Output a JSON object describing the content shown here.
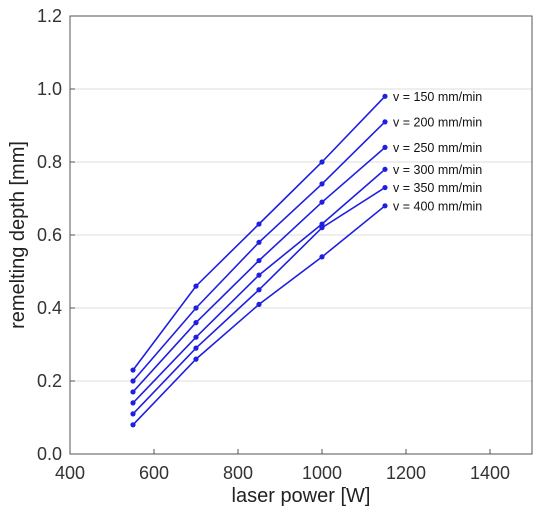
{
  "chart_data": {
    "type": "line",
    "title": "",
    "xlabel": "laser power [W]",
    "ylabel": "remelting depth [mm]",
    "xlim": [
      400,
      1500
    ],
    "ylim": [
      0.0,
      1.2
    ],
    "xticks": [
      400,
      600,
      800,
      1000,
      1200,
      1400
    ],
    "yticks": [
      0.0,
      0.2,
      0.4,
      0.6,
      0.8,
      1.0,
      1.2
    ],
    "xtick_labels": [
      "400",
      "600",
      "800",
      "1000",
      "1200",
      "1400"
    ],
    "ytick_labels": [
      "0.0",
      "0.2",
      "0.4",
      "0.6",
      "0.8",
      "1.0",
      "1.2"
    ],
    "grid": "horizontal",
    "legend": "inline labels at line ends",
    "line_color": "#1f1fe0",
    "x": [
      550,
      700,
      850,
      1000,
      1150
    ],
    "series": [
      {
        "name": "v = 150 mm/min",
        "values": [
          0.23,
          0.46,
          0.63,
          0.8,
          0.98
        ]
      },
      {
        "name": "v = 200 mm/min",
        "values": [
          0.2,
          0.4,
          0.58,
          0.74,
          0.91
        ]
      },
      {
        "name": "v = 250 mm/min",
        "values": [
          0.17,
          0.36,
          0.53,
          0.69,
          0.84
        ]
      },
      {
        "name": "v = 300 mm/min",
        "values": [
          0.14,
          0.32,
          0.49,
          0.63,
          0.78
        ]
      },
      {
        "name": "v = 350 mm/min",
        "values": [
          0.11,
          0.29,
          0.45,
          0.62,
          0.73
        ]
      },
      {
        "name": "v = 400 mm/min",
        "values": [
          0.08,
          0.26,
          0.41,
          0.54,
          0.68
        ]
      }
    ]
  }
}
